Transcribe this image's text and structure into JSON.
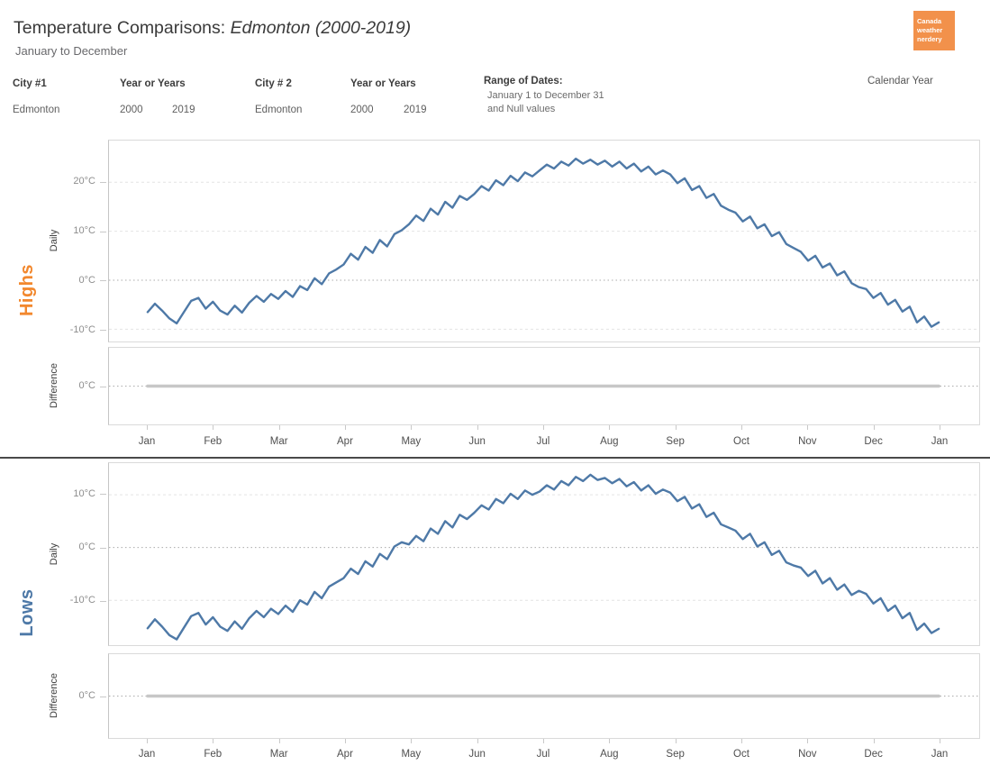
{
  "header": {
    "title_prefix": "Temperature Comparisons: ",
    "title_emphasis": "Edmonton (2000-2019)",
    "subtitle": "January to December"
  },
  "logo": {
    "lines": [
      "Canada",
      "weather",
      "nerdery"
    ],
    "bg_color": "#f2914b"
  },
  "filters": {
    "city1": {
      "label": "City #1",
      "value": "Edmonton"
    },
    "years1": {
      "label": "Year or Years",
      "from": "2000",
      "to": "2019"
    },
    "city2": {
      "label": "City # 2",
      "value": "Edmonton"
    },
    "years2": {
      "label": "Year or Years",
      "from": "2000",
      "to": "2019"
    },
    "range": {
      "label": "Range of Dates:",
      "line1": "January 1 to December 31",
      "line2": "and Null values"
    },
    "calendar": {
      "label": "Calendar Year"
    }
  },
  "months": [
    "Jan",
    "Feb",
    "Mar",
    "Apr",
    "May",
    "Jun",
    "Jul",
    "Aug",
    "Sep",
    "Oct",
    "Nov",
    "Dec",
    "Jan"
  ],
  "sections": [
    {
      "id": "highs",
      "label": "Highs",
      "color": "#f2882e",
      "row1": "Daily",
      "row2": "Difference"
    },
    {
      "id": "lows",
      "label": "Lows",
      "color": "#4e79a7",
      "row1": "Daily",
      "row2": "Difference"
    }
  ],
  "chart_data": [
    {
      "id": "highs-daily",
      "type": "line",
      "section": "Highs",
      "row_label": "Daily",
      "x_range": [
        "Jan 1",
        "Dec 31"
      ],
      "ylim": [
        -12.5,
        28.5
      ],
      "yticks": [
        -10,
        0,
        10,
        20
      ],
      "ytick_suffix": "°C",
      "zero_line": "dotted",
      "grid": "dashed-light",
      "line_color": "#4e79a7",
      "values": [
        -6.5,
        -4.8,
        -6.2,
        -7.8,
        -8.8,
        -6.5,
        -4.2,
        -3.6,
        -5.8,
        -4.4,
        -6.2,
        -7.0,
        -5.2,
        -6.6,
        -4.6,
        -3.2,
        -4.4,
        -2.8,
        -3.8,
        -2.2,
        -3.4,
        -1.2,
        -2.0,
        0.4,
        -0.8,
        1.4,
        2.2,
        3.2,
        5.4,
        4.2,
        6.8,
        5.6,
        8.2,
        6.9,
        9.4,
        10.2,
        11.4,
        13.2,
        12.1,
        14.6,
        13.4,
        16.0,
        14.8,
        17.2,
        16.4,
        17.6,
        19.2,
        18.3,
        20.4,
        19.4,
        21.3,
        20.2,
        22.0,
        21.2,
        22.4,
        23.6,
        22.8,
        24.2,
        23.4,
        24.8,
        23.8,
        24.6,
        23.6,
        24.4,
        23.2,
        24.2,
        22.8,
        23.8,
        22.2,
        23.2,
        21.6,
        22.4,
        21.6,
        19.8,
        20.8,
        18.4,
        19.2,
        16.8,
        17.6,
        15.2,
        14.4,
        13.8,
        12.0,
        13.0,
        10.6,
        11.4,
        9.0,
        9.8,
        7.4,
        6.6,
        5.8,
        4.0,
        5.0,
        2.6,
        3.4,
        1.0,
        1.8,
        -0.6,
        -1.4,
        -1.8,
        -3.6,
        -2.6,
        -5.0,
        -4.0,
        -6.4,
        -5.4,
        -8.6,
        -7.4,
        -9.5,
        -8.6
      ]
    },
    {
      "id": "highs-diff",
      "type": "line",
      "section": "Highs",
      "row_label": "Difference",
      "x_range": [
        "Jan 1",
        "Dec 31"
      ],
      "ylim": [
        -3,
        3
      ],
      "yticks": [
        0
      ],
      "ytick_suffix": "°C",
      "zero_line": "dotted",
      "line_color": "#c7c7c7",
      "values": [
        0,
        0
      ]
    },
    {
      "id": "lows-daily",
      "type": "line",
      "section": "Lows",
      "row_label": "Daily",
      "x_range": [
        "Jan 1",
        "Dec 31"
      ],
      "ylim": [
        -18.5,
        16
      ],
      "yticks": [
        -10,
        0,
        10
      ],
      "ytick_suffix": "°C",
      "zero_line": "dotted",
      "grid": "dashed-light",
      "line_color": "#4e79a7",
      "values": [
        -15.3,
        -13.6,
        -15.0,
        -16.6,
        -17.4,
        -15.2,
        -13.0,
        -12.4,
        -14.6,
        -13.2,
        -15.0,
        -15.8,
        -14.0,
        -15.4,
        -13.4,
        -12.0,
        -13.2,
        -11.6,
        -12.6,
        -11.0,
        -12.2,
        -10.0,
        -10.8,
        -8.4,
        -9.6,
        -7.4,
        -6.6,
        -5.8,
        -4.0,
        -5.0,
        -2.6,
        -3.6,
        -1.2,
        -2.2,
        0.2,
        1.0,
        0.6,
        2.2,
        1.2,
        3.6,
        2.6,
        5.0,
        3.8,
        6.2,
        5.4,
        6.6,
        8.0,
        7.2,
        9.2,
        8.4,
        10.2,
        9.2,
        10.8,
        10.0,
        10.6,
        11.8,
        11.0,
        12.6,
        11.8,
        13.4,
        12.6,
        13.8,
        12.8,
        13.2,
        12.2,
        13.0,
        11.6,
        12.4,
        10.8,
        11.8,
        10.2,
        11.0,
        10.4,
        8.8,
        9.6,
        7.4,
        8.2,
        5.8,
        6.6,
        4.4,
        3.8,
        3.2,
        1.6,
        2.6,
        0.2,
        1.0,
        -1.4,
        -0.6,
        -2.8,
        -3.4,
        -3.8,
        -5.4,
        -4.4,
        -6.8,
        -5.8,
        -8.0,
        -7.0,
        -9.0,
        -8.2,
        -8.8,
        -10.6,
        -9.6,
        -12.0,
        -11.0,
        -13.4,
        -12.4,
        -15.6,
        -14.4,
        -16.2,
        -15.4
      ]
    },
    {
      "id": "lows-diff",
      "type": "line",
      "section": "Lows",
      "row_label": "Difference",
      "x_range": [
        "Jan 1",
        "Dec 31"
      ],
      "ylim": [
        -3,
        3
      ],
      "yticks": [
        0
      ],
      "ytick_suffix": "°C",
      "zero_line": "dotted",
      "line_color": "#c7c7c7",
      "values": [
        0,
        0
      ]
    }
  ]
}
